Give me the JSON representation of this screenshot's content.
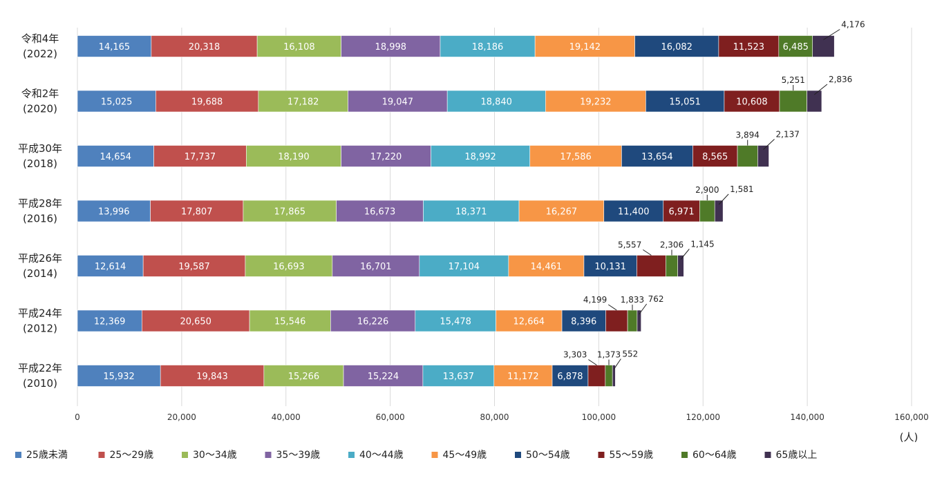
{
  "chart_data": {
    "type": "bar",
    "orientation": "horizontal",
    "stacked": true,
    "categories": [
      [
        "令和4年",
        "(2022)"
      ],
      [
        "令和2年",
        "(2020)"
      ],
      [
        "平成30年",
        "(2018)"
      ],
      [
        "平成28年",
        "(2016)"
      ],
      [
        "平成26年",
        "(2014)"
      ],
      [
        "平成24年",
        "(2012)"
      ],
      [
        "平成22年",
        "(2010)"
      ]
    ],
    "series": [
      {
        "name": "25歳未満",
        "color": "#4f81bd",
        "values": [
          14165,
          15025,
          14654,
          13996,
          12614,
          12369,
          15932
        ]
      },
      {
        "name": "25～29歳",
        "color": "#c0504d",
        "values": [
          20318,
          19688,
          17737,
          17807,
          19587,
          20650,
          19843
        ]
      },
      {
        "name": "30～34歳",
        "color": "#9bbb59",
        "values": [
          16108,
          17182,
          18190,
          17865,
          16693,
          15546,
          15266
        ]
      },
      {
        "name": "35～39歳",
        "color": "#8064a2",
        "values": [
          18998,
          19047,
          17220,
          16673,
          16701,
          16226,
          15224
        ]
      },
      {
        "name": "40～44歳",
        "color": "#4bacc6",
        "values": [
          18186,
          18840,
          18992,
          18371,
          17104,
          15478,
          13637
        ]
      },
      {
        "name": "45～49歳",
        "color": "#f79646",
        "values": [
          19142,
          19232,
          17586,
          16267,
          14461,
          12664,
          11172
        ]
      },
      {
        "name": "50～54歳",
        "color": "#1f497d",
        "values": [
          16082,
          15051,
          13654,
          11400,
          10131,
          8396,
          6878
        ]
      },
      {
        "name": "55～59歳",
        "color": "#7f1f1f",
        "values": [
          11523,
          10608,
          8565,
          6971,
          5557,
          4199,
          3303
        ]
      },
      {
        "name": "60～64歳",
        "color": "#4f7a28",
        "values": [
          6485,
          5251,
          3894,
          2900,
          2306,
          1833,
          1373
        ]
      },
      {
        "name": "65歳以上",
        "color": "#403151",
        "values": [
          4176,
          2836,
          2137,
          1581,
          1145,
          762,
          552
        ]
      }
    ],
    "data_labels": [
      [
        "14,165",
        "20,318",
        "16,108",
        "18,998",
        "18,186",
        "19,142",
        "16,082",
        "11,523",
        "6,485",
        "4,176"
      ],
      [
        "15,025",
        "19,688",
        "17,182",
        "19,047",
        "18,840",
        "19,232",
        "15,051",
        "10,608",
        "5,251",
        "2,836"
      ],
      [
        "14,654",
        "17,737",
        "18,190",
        "17,220",
        "18,992",
        "17,586",
        "13,654",
        "8,565",
        "3,894",
        "2,137"
      ],
      [
        "13,996",
        "17,807",
        "17,865",
        "16,673",
        "18,371",
        "16,267",
        "11,400",
        "6,971",
        "2,900",
        "1,581"
      ],
      [
        "12,614",
        "19,587",
        "16,693",
        "16,701",
        "17,104",
        "14,461",
        "10,131",
        "5,557",
        "2,306",
        "1,145"
      ],
      [
        "12,369",
        "20,650",
        "15,546",
        "16,226",
        "15,478",
        "12,664",
        "8,396",
        "4,199",
        "1,833",
        "762"
      ],
      [
        "15,932",
        "19,843",
        "15,266",
        "15,224",
        "13,637",
        "11,172",
        "6,878",
        "3,303",
        "1,373",
        "552"
      ]
    ],
    "x_ticks": [
      "0",
      "20,000",
      "40,000",
      "60,000",
      "80,000",
      "100,000",
      "120,000",
      "140,000",
      "160,000"
    ],
    "xlim": [
      0,
      160000
    ],
    "x_unit": "(人)",
    "grid": "vertical",
    "legend_position": "bottom"
  }
}
